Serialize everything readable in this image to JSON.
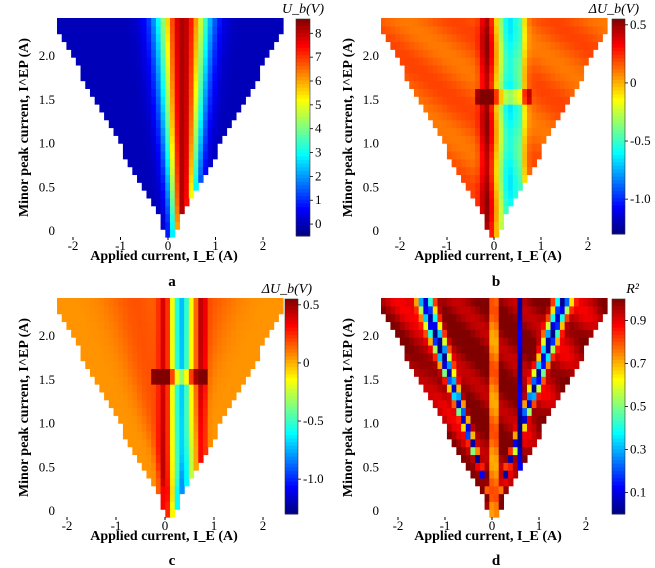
{
  "chart_data": [
    {
      "panel": "a",
      "type": "heatmap",
      "xlabel": "Applied current, I_E (A)",
      "ylabel": "Minor peak current, I^EP (A)",
      "xlim": [
        -2.4,
        2.4
      ],
      "ylim": [
        -0.1,
        2.4
      ],
      "xticks": [
        "-2",
        "-1",
        "0",
        "1",
        "2"
      ],
      "yticks": [
        "0",
        "0.5",
        "1.0",
        "1.5",
        "2.0"
      ],
      "colorbar": {
        "label": "U_b(V)",
        "range": [
          -0.5,
          8.6
        ],
        "ticks": [
          "0",
          "1",
          "2",
          "3",
          "4",
          "5",
          "6",
          "7",
          "8"
        ]
      },
      "shape": "triangle: valid region |I_E| <= I^EP",
      "description": "ridge of high values (~8 V) at I_E about 0.3 A, low (~0 V) elsewhere"
    },
    {
      "panel": "b",
      "type": "heatmap",
      "xlabel": "Applied current, I_E (A)",
      "ylabel": "Minor peak current, I^EP (A)",
      "xlim": [
        -2.4,
        2.4
      ],
      "ylim": [
        -0.1,
        2.4
      ],
      "xticks": [
        "-2",
        "-1",
        "0",
        "1",
        "2"
      ],
      "yticks": [
        "0",
        "0.5",
        "1.0",
        "1.5",
        "2.0"
      ],
      "colorbar": {
        "label": "ΔU_b(V)",
        "range": [
          -1.3,
          0.55
        ],
        "ticks": [
          "0.5",
          "0",
          "-0.5",
          "-1.0"
        ]
      },
      "description": "background ~0.15 V, negative band (~-0.6 V) at I_E 0.1-0.6 A, positive ridge at I_E about -0.1 A"
    },
    {
      "panel": "c",
      "type": "heatmap",
      "xlabel": "Applied current, I_E (A)",
      "ylabel": "Minor peak current, I^EP (A)",
      "xlim": [
        -2.4,
        2.4
      ],
      "ylim": [
        -0.1,
        2.4
      ],
      "xticks": [
        "-2",
        "-1",
        "0",
        "1",
        "2"
      ],
      "yticks": [
        "0",
        "0.5",
        "1.0",
        "1.5",
        "2.0"
      ],
      "colorbar": {
        "label": "ΔU_b(V)",
        "range": [
          -1.3,
          0.55
        ],
        "ticks": [
          "0.5",
          "0",
          "-0.5",
          "-1.0"
        ]
      },
      "description": "background ~0.05-0.3 V, negative band (~-0.8 V) at I_E 0.1-0.4 A, positive ridges at I_E about -0.1 and 0.7 A"
    },
    {
      "panel": "d",
      "type": "heatmap",
      "xlabel": "Applied current, I_E (A)",
      "ylabel": "Minor peak current, I^EP (A)",
      "xlim": [
        -2.4,
        2.4
      ],
      "ylim": [
        -0.1,
        2.4
      ],
      "xticks": [
        "-2",
        "-1",
        "0",
        "1",
        "2"
      ],
      "yticks": [
        "0",
        "0.5",
        "1.0",
        "1.5",
        "2.0"
      ],
      "colorbar": {
        "label": "R²",
        "range": [
          0.0,
          1.0
        ],
        "ticks": [
          "0.9",
          "0.7",
          "0.5",
          "0.3",
          "0.1"
        ]
      },
      "description": "R² ~0.9-1.0 inside, blue minima along I_E = 0, I_E = 0.55 A and along edges I_E about ±0.6·I^EP"
    }
  ],
  "panel_labels": [
    "a",
    "b",
    "c",
    "d"
  ]
}
